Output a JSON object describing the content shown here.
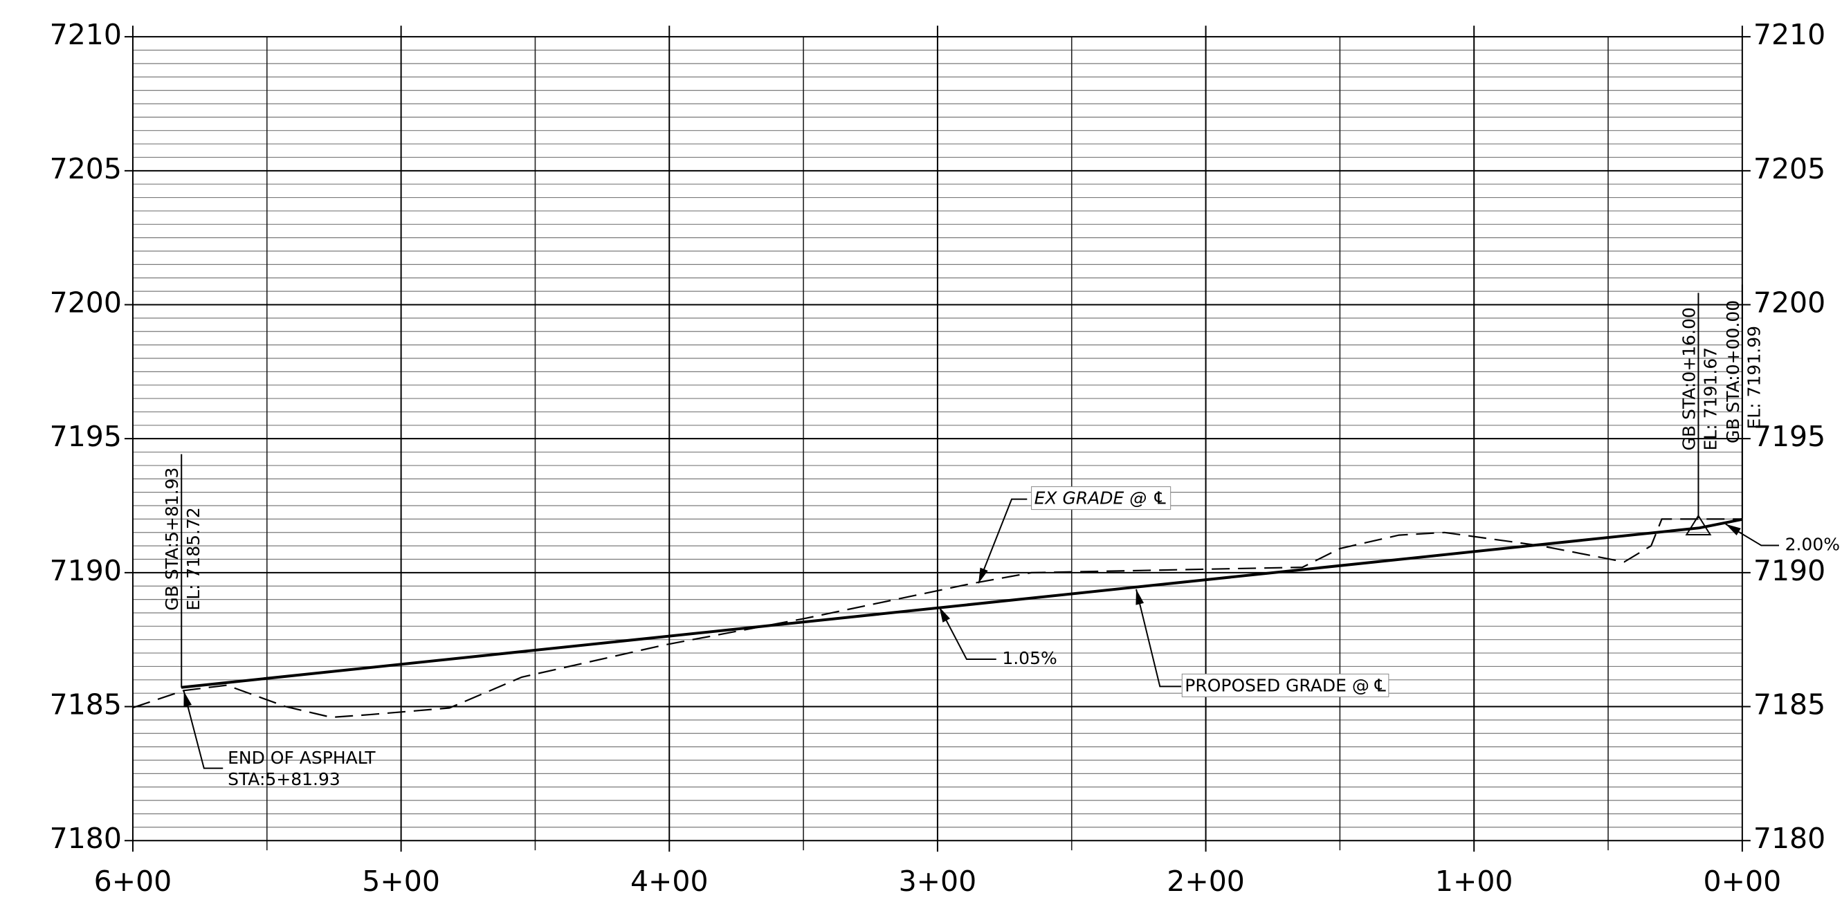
{
  "chart_data": {
    "type": "line",
    "x_reversed": true,
    "xlim": [
      600,
      0
    ],
    "xticks": [
      {
        "value": 600,
        "label": "6+00"
      },
      {
        "value": 500,
        "label": "5+00"
      },
      {
        "value": 400,
        "label": "4+00"
      },
      {
        "value": 300,
        "label": "3+00"
      },
      {
        "value": 200,
        "label": "2+00"
      },
      {
        "value": 100,
        "label": "1+00"
      },
      {
        "value": 0,
        "label": "0+00"
      }
    ],
    "ylim": [
      7180,
      7210
    ],
    "yticks": [
      7180,
      7185,
      7190,
      7195,
      7200,
      7205,
      7210
    ],
    "grid": true,
    "minor_grid": true,
    "series": [
      {
        "name": "PROPOSED GRADE @ ℄",
        "color": "#000000",
        "dashed": false,
        "x": [
          581.93,
          16,
          0
        ],
        "values": [
          7185.72,
          7191.67,
          7191.99
        ]
      },
      {
        "name": "EX GRADE @ ℄",
        "color": "#000000",
        "dashed": true,
        "x": [
          600,
          581,
          565,
          543,
          526,
          512,
          482,
          455,
          402,
          349,
          287,
          265,
          164,
          150,
          128,
          111,
          75,
          44,
          34,
          30,
          17,
          0
        ],
        "values": [
          7184.96,
          7185.6,
          7185.8,
          7185.0,
          7184.6,
          7184.7,
          7184.95,
          7186.1,
          7187.3,
          7188.3,
          7189.6,
          7190.0,
          7190.2,
          7190.9,
          7191.4,
          7191.5,
          7191.0,
          7190.4,
          7191.0,
          7192.0,
          7192.0,
          7192.0
        ]
      }
    ],
    "annotations": [
      {
        "text": "1.05%"
      },
      {
        "text": "2.00%"
      },
      {
        "text": "END OF ASPHALT"
      },
      {
        "text": "STA:5+81.93"
      },
      {
        "text": "GB STA:5+81.93"
      },
      {
        "text": "EL: 7185.72"
      },
      {
        "text": "GB STA:0+16.00"
      },
      {
        "text": "EL: 7191.67"
      },
      {
        "text": "GB STA:0+00.00"
      },
      {
        "text": "EL: 7191.99"
      }
    ]
  }
}
